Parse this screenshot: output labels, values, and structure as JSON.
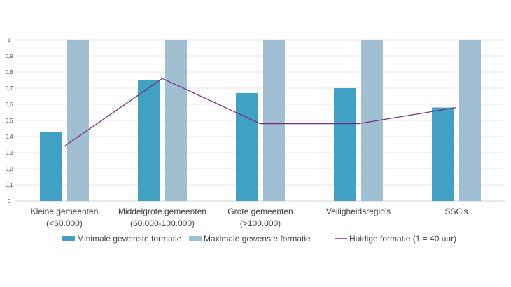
{
  "chart_data": {
    "type": "bar",
    "categories": [
      [
        "Kleine gemeenten",
        "(<60.000)"
      ],
      [
        "Middelgrote gemeenten",
        "(60.000-100.000)"
      ],
      [
        "Grote gemeenten",
        "(>100.000)"
      ],
      [
        "Veiligheidsregio's"
      ],
      [
        "SSC's"
      ]
    ],
    "series": [
      {
        "name": "Minimale gewenste formatie",
        "kind": "bar",
        "color": "#41A1C4",
        "values": [
          0.43,
          0.75,
          0.67,
          0.7,
          0.58
        ]
      },
      {
        "name": "Maximale gewenste formatie",
        "kind": "bar",
        "color": "#A0BFD3",
        "values": [
          1,
          1,
          1,
          1,
          1
        ]
      },
      {
        "name": "Huidige formatie (1 = 40 uur)",
        "kind": "line",
        "color": "#7B2C7F",
        "values": [
          0.34,
          0.76,
          0.48,
          0.48,
          0.58
        ]
      }
    ],
    "yticks": [
      "0",
      "0,1",
      "0,2",
      "0,3",
      "0,4",
      "0,5",
      "0,6",
      "0,7",
      "0,8",
      "0,9",
      "1"
    ],
    "ylim": [
      0,
      1
    ],
    "grid": true,
    "legend_position": "bottom"
  }
}
